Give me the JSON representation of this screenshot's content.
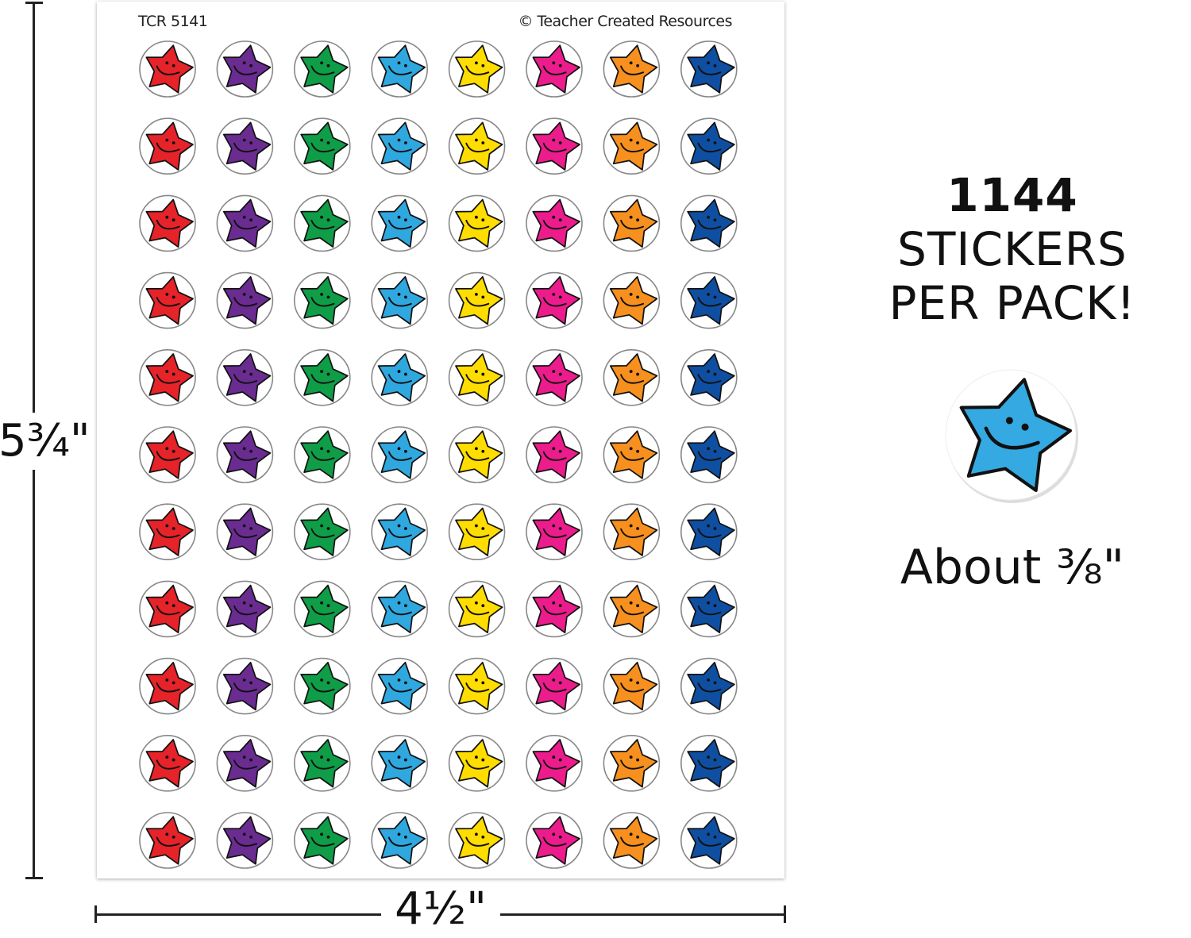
{
  "sheet": {
    "product_code": "TCR 5141",
    "copyright": "© Teacher Created Resources",
    "rows": 11,
    "colors": [
      {
        "name": "red",
        "hex": "#e52329"
      },
      {
        "name": "purple",
        "hex": "#6a2c91"
      },
      {
        "name": "green",
        "hex": "#0f9d48"
      },
      {
        "name": "light-blue",
        "hex": "#2fa8e0"
      },
      {
        "name": "yellow",
        "hex": "#ffdd00"
      },
      {
        "name": "pink",
        "hex": "#ec1c8c"
      },
      {
        "name": "orange",
        "hex": "#f7901e"
      },
      {
        "name": "blue",
        "hex": "#0f4fa2"
      }
    ],
    "sticker_icon": "smiley-star-icon"
  },
  "dimensions": {
    "height_label": "5¾\"",
    "width_label": "4½\""
  },
  "headline": {
    "count": "1144",
    "line1_rest": " STICKERS",
    "line2": "PER PACK!"
  },
  "sample": {
    "color": "#35a9e1",
    "size_label": "About ⅜\""
  }
}
